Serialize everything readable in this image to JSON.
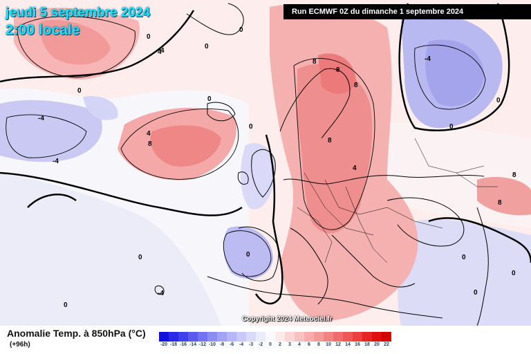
{
  "header": {
    "date_title": "jeudi 5 septembre 2024",
    "local_time": "2:00 locale",
    "run_info": "Run ECMWF 0Z du dimanche 1 septembre 2024"
  },
  "footer": {
    "title": "Anomalie Temp. à 850hPa (°C)",
    "lead_time": "(+96h)",
    "copyright": "Copyright 2024 Meteociel.fr"
  },
  "legend": {
    "labels": [
      "-20",
      "-18",
      "-16",
      "-14",
      "-12",
      "-10",
      "-8",
      "-6",
      "-4",
      "-3",
      "-2",
      "0",
      "2",
      "3",
      "4",
      "6",
      "8",
      "10",
      "12",
      "14",
      "16",
      "18",
      "20",
      "22"
    ],
    "colors": [
      "#1111dd",
      "#2a2ae6",
      "#4141ea",
      "#5a5aee",
      "#7373f1",
      "#8b8bf3",
      "#a2a2f6",
      "#b6b6f8",
      "#c9c9fb",
      "#dadafc",
      "#ebebfd",
      "#f9f9fe",
      "#fdeaea",
      "#fbd6d6",
      "#f9c2c2",
      "#f7adad",
      "#f59898",
      "#f38282",
      "#f16c6c",
      "#ef5656",
      "#ec3f3f",
      "#e62626",
      "#dd1111",
      "#d40000"
    ]
  },
  "map_labels": {
    "contours": [
      "0",
      "4",
      "8",
      "-4",
      "0",
      "4",
      "8",
      "0",
      "-4",
      "0",
      "8",
      "8",
      "8",
      "4",
      "8",
      "0",
      "0",
      "-4",
      "0",
      "0",
      "-4",
      "0",
      "0",
      "4",
      "8",
      "0",
      "0",
      "0",
      "0"
    ]
  }
}
